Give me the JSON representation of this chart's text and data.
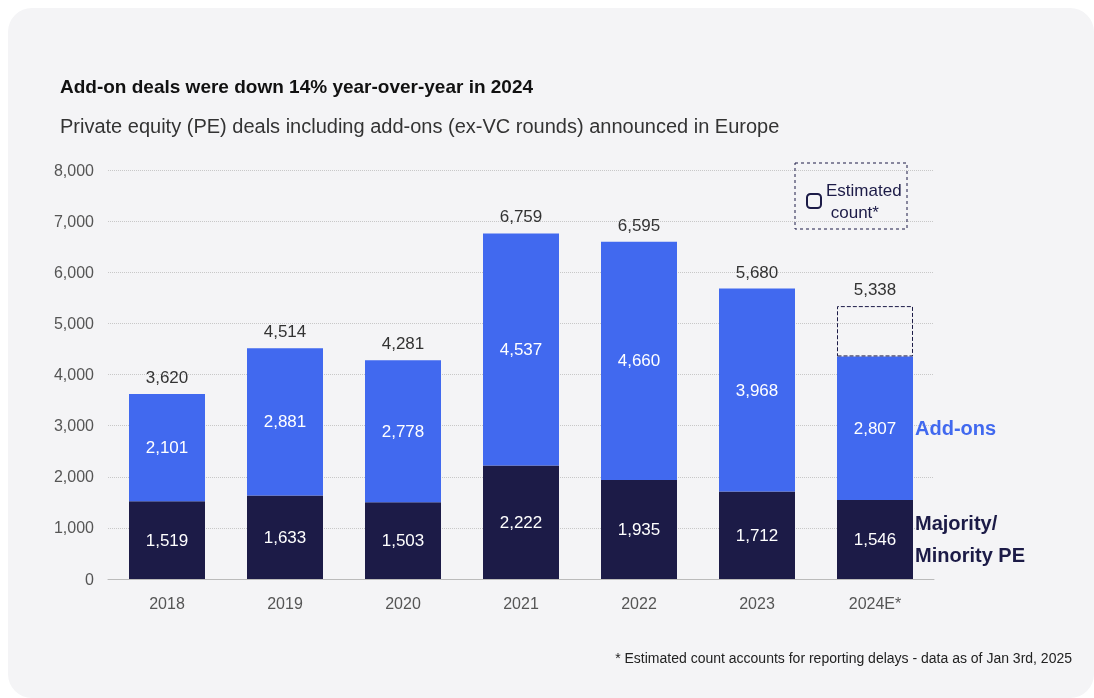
{
  "chart_data": {
    "type": "bar",
    "stacked": true,
    "title": "Add-on deals were down 14% year-over-year in 2024",
    "subtitle": "Private equity (PE) deals including add-ons (ex-VC rounds) announced in Europe",
    "categories": [
      "2018",
      "2019",
      "2020",
      "2021",
      "2022",
      "2023",
      "2024E*"
    ],
    "series": [
      {
        "name": "Majority/ Minority PE",
        "color": "#1c1b47",
        "values": [
          1519,
          1633,
          1503,
          2222,
          1935,
          1712,
          1546
        ],
        "value_labels": [
          "1,519",
          "1,633",
          "1,503",
          "2,222",
          "1,935",
          "1,712",
          "1,546"
        ]
      },
      {
        "name": "Add-ons",
        "color": "#4169ef",
        "values": [
          2101,
          2881,
          2778,
          4537,
          4660,
          3968,
          2807
        ],
        "value_labels": [
          "2,101",
          "2,881",
          "2,778",
          "4,537",
          "4,660",
          "3,968",
          "2,807"
        ]
      },
      {
        "name": "Estimated count*",
        "color": "#1c1b47",
        "line_style": "dashed",
        "values": [
          null,
          null,
          null,
          null,
          null,
          null,
          985
        ]
      }
    ],
    "totals": [
      "3,620",
      "4,514",
      "4,281",
      "6,759",
      "6,595",
      "5,680",
      "5,338"
    ],
    "ylim": [
      0,
      8000
    ],
    "yticks": [
      {
        "value": 0,
        "label": "0"
      },
      {
        "value": 1000,
        "label": "1,000"
      },
      {
        "value": 2000,
        "label": "2,000"
      },
      {
        "value": 3000,
        "label": "3,000"
      },
      {
        "value": 4000,
        "label": "4,000"
      },
      {
        "value": 5000,
        "label": "5,000"
      },
      {
        "value": 6000,
        "label": "6,000"
      },
      {
        "value": 7000,
        "label": "7,000"
      },
      {
        "value": 8000,
        "label": "8,000"
      }
    ],
    "grid": "y",
    "annotations": [
      "* Estimated count accounts for reporting delays - data as of Jan 3rd, 2025"
    ]
  }
}
